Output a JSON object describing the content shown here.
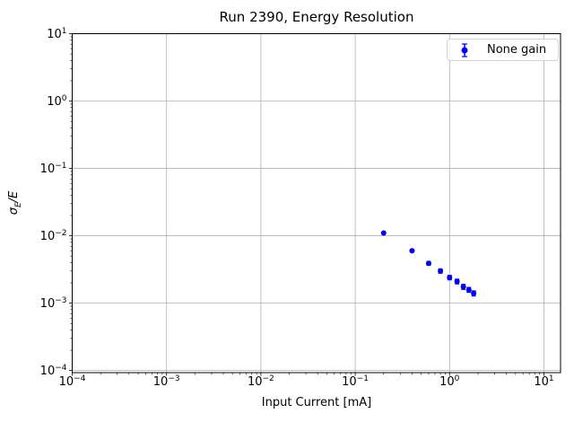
{
  "chart_data": {
    "type": "scatter",
    "title": "Run 2390, Energy Resolution",
    "xlabel": "Input Current [mA]",
    "ylabel": {
      "sigma": "σ",
      "subscript": "E",
      "rest": "/E"
    },
    "legend": {
      "label": "None gain",
      "position": "upper right"
    },
    "x_scale": "log",
    "y_scale": "log",
    "xlim": [
      0.0001,
      15
    ],
    "ylim": [
      9.3e-05,
      10
    ],
    "x_tick_exponents": [
      -4,
      -3,
      -2,
      -1,
      0,
      1
    ],
    "y_tick_exponents": [
      1,
      0,
      -1,
      -2,
      -3,
      -4
    ],
    "grid": true,
    "grid_color": "#b0b0b0",
    "marker_color": "#0000ff",
    "series": [
      {
        "name": "None gain",
        "color": "#0000ff",
        "x": [
          0.2,
          0.4,
          0.6,
          0.8,
          1.0,
          1.2,
          1.4,
          1.6,
          1.8
        ],
        "y": [
          0.011,
          0.006,
          0.0039,
          0.003,
          0.0024,
          0.0021,
          0.00175,
          0.00158,
          0.0014
        ],
        "yerr": [
          0.0004,
          0.00025,
          0.00025,
          0.00022,
          0.00018,
          0.00017,
          0.00015,
          0.00013,
          0.00012
        ]
      }
    ]
  }
}
